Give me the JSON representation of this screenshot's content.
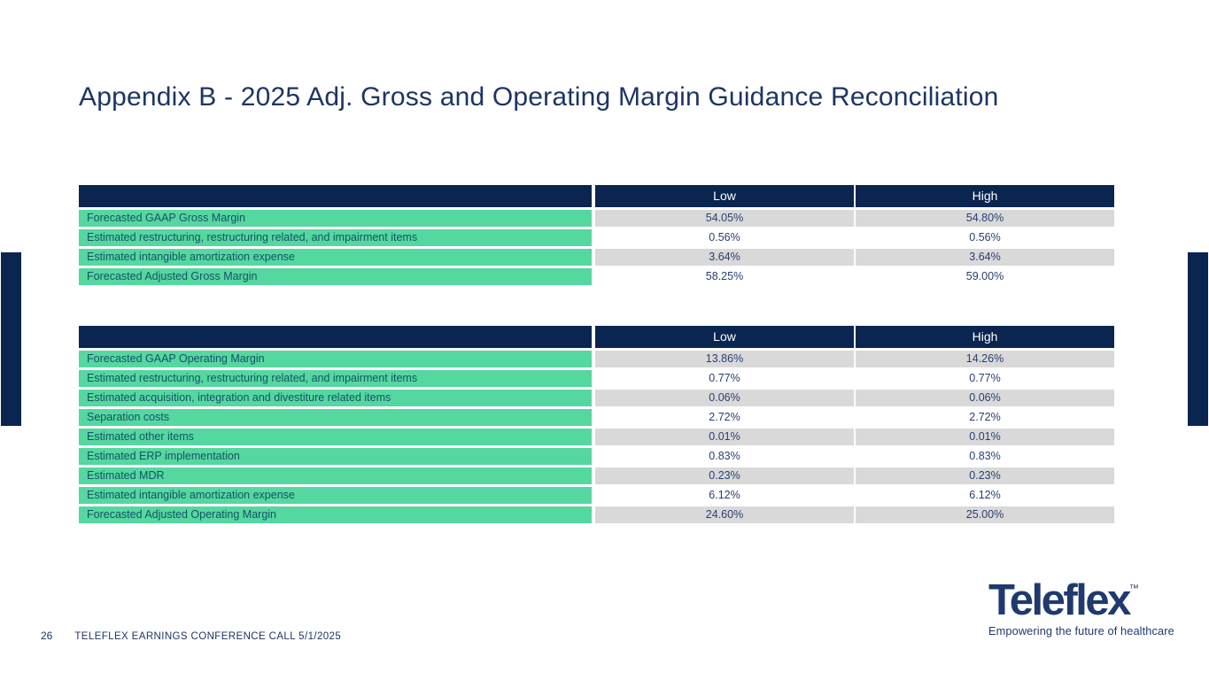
{
  "slide": {
    "title": "Appendix B - 2025 Adj. Gross and Operating Margin Guidance Reconciliation"
  },
  "tables": [
    {
      "id": "gross-margin-reconciliation",
      "columns": {
        "low": "Low",
        "high": "High"
      },
      "rows": [
        {
          "label": "Forecasted GAAP Gross Margin",
          "low": "54.05%",
          "high": "54.80%"
        },
        {
          "label": "Estimated restructuring, restructuring related, and impairment items",
          "low": "0.56%",
          "high": "0.56%"
        },
        {
          "label": "Estimated intangible amortization expense",
          "low": "3.64%",
          "high": "3.64%"
        },
        {
          "label": "Forecasted Adjusted Gross Margin",
          "low": "58.25%",
          "high": "59.00%"
        }
      ]
    },
    {
      "id": "operating-margin-reconciliation",
      "columns": {
        "low": "Low",
        "high": "High"
      },
      "rows": [
        {
          "label": "Forecasted GAAP Operating Margin",
          "low": "13.86%",
          "high": "14.26%"
        },
        {
          "label": "Estimated restructuring, restructuring related, and impairment items",
          "low": "0.77%",
          "high": "0.77%"
        },
        {
          "label": "Estimated acquisition, integration and divestiture related items",
          "low": "0.06%",
          "high": "0.06%"
        },
        {
          "label": "Separation costs",
          "low": "2.72%",
          "high": "2.72%"
        },
        {
          "label": "Estimated other items",
          "low": "0.01%",
          "high": "0.01%"
        },
        {
          "label": "Estimated ERP implementation",
          "low": "0.83%",
          "high": "0.83%"
        },
        {
          "label": "Estimated MDR",
          "low": "0.23%",
          "high": "0.23%"
        },
        {
          "label": "Estimated intangible amortization expense",
          "low": "6.12%",
          "high": "6.12%"
        },
        {
          "label": "Forecasted Adjusted Operating Margin",
          "low": "24.60%",
          "high": "25.00%"
        }
      ]
    }
  ],
  "footer": {
    "page_number": "26",
    "text": "TELEFLEX EARNINGS CONFERENCE CALL 5/1/2025"
  },
  "logo": {
    "brand": "Teleflex",
    "trademark": "™",
    "tagline": "Empowering the future of healthcare"
  },
  "colors": {
    "navy": "#0a2550",
    "green": "#55d7a0",
    "gray_row": "#d9d9d9",
    "value_text": "#283f6e",
    "label_text": "#155267",
    "title_text": "#1d3565",
    "logo_navy": "#1e3a6e"
  }
}
